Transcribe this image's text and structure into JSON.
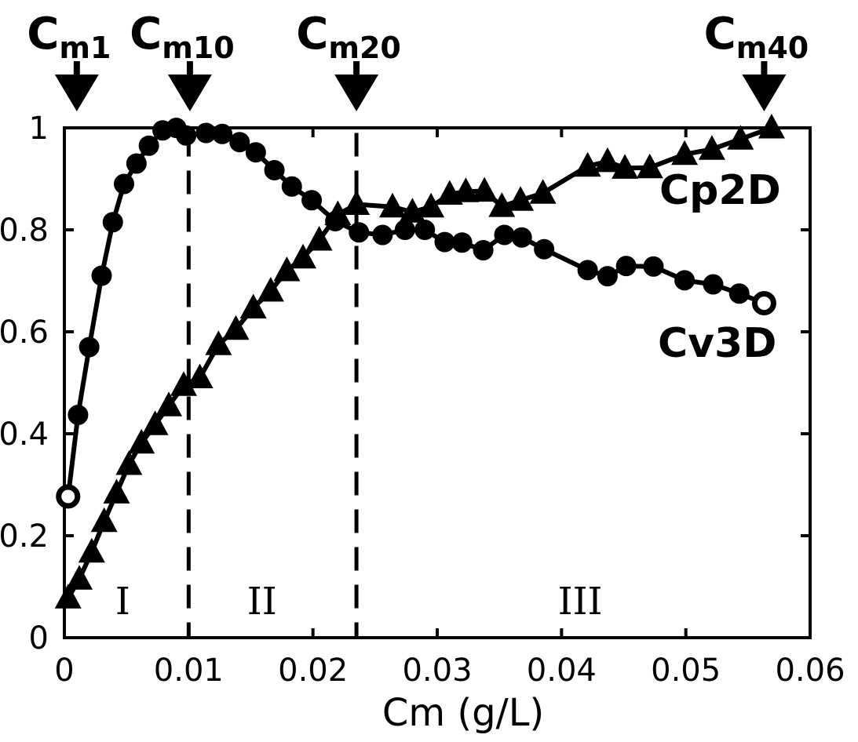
{
  "chart_data": {
    "type": "line",
    "xlabel": "Cm (g/L)",
    "ylabel": "",
    "xlim": [
      0,
      0.06
    ],
    "ylim": [
      0,
      1
    ],
    "x_ticks": [
      "0",
      "0.01",
      "0.02",
      "0.03",
      "0.04",
      "0.05",
      "0.06"
    ],
    "y_ticks": [
      "0",
      "0.2",
      "0.4",
      "0.6",
      "0.8",
      "1"
    ],
    "grid": false,
    "series": [
      {
        "name": "Cv3D",
        "marker": "circle",
        "x": [
          0.0003,
          0.0011,
          0.002,
          0.003,
          0.0039,
          0.0048,
          0.0058,
          0.0068,
          0.0079,
          0.009,
          0.0098,
          0.0114,
          0.0127,
          0.0141,
          0.0154,
          0.0169,
          0.0183,
          0.0199,
          0.0218,
          0.0237,
          0.0256,
          0.0274,
          0.029,
          0.0306,
          0.032,
          0.0337,
          0.0354,
          0.0368,
          0.0386,
          0.0421,
          0.0437,
          0.0452,
          0.0474,
          0.0499,
          0.0522,
          0.0543,
          0.0563
        ],
        "y": [
          0.277,
          0.437,
          0.57,
          0.71,
          0.815,
          0.89,
          0.93,
          0.965,
          0.995,
          1.0,
          0.985,
          0.99,
          0.988,
          0.972,
          0.952,
          0.917,
          0.885,
          0.858,
          0.817,
          0.795,
          0.79,
          0.8,
          0.8,
          0.776,
          0.775,
          0.76,
          0.79,
          0.785,
          0.762,
          0.721,
          0.709,
          0.729,
          0.728,
          0.701,
          0.693,
          0.675,
          0.656
        ]
      },
      {
        "name": "Cp2D",
        "marker": "triangle",
        "x": [
          0.0003,
          0.0012,
          0.0022,
          0.0032,
          0.0042,
          0.0052,
          0.0062,
          0.0073,
          0.0084,
          0.0096,
          0.0109,
          0.0124,
          0.0138,
          0.0152,
          0.0166,
          0.0179,
          0.0192,
          0.0205,
          0.022,
          0.0235,
          0.0264,
          0.028,
          0.0295,
          0.031,
          0.0323,
          0.0338,
          0.0352,
          0.0367,
          0.0385,
          0.0421,
          0.0437,
          0.0451,
          0.0471,
          0.0499,
          0.0521,
          0.0544,
          0.0569
        ],
        "y": [
          0.078,
          0.115,
          0.168,
          0.228,
          0.284,
          0.34,
          0.382,
          0.418,
          0.455,
          0.495,
          0.51,
          0.575,
          0.605,
          0.647,
          0.68,
          0.72,
          0.745,
          0.78,
          0.83,
          0.85,
          0.845,
          0.835,
          0.845,
          0.87,
          0.875,
          0.876,
          0.846,
          0.858,
          0.872,
          0.925,
          0.934,
          0.921,
          0.922,
          0.948,
          0.958,
          0.978,
          1.0
        ]
      }
    ],
    "dividers_x": [
      0.01,
      0.0235
    ],
    "regions": [
      {
        "label": "I",
        "x": 0.0047
      },
      {
        "label": "II",
        "x": 0.0159
      },
      {
        "label": "III",
        "x": 0.0415
      }
    ],
    "markers": [
      {
        "main": "C",
        "sub": "m1",
        "x": 0.001
      },
      {
        "main": "C",
        "sub": "m10",
        "x": 0.0101
      },
      {
        "main": "C",
        "sub": "m20",
        "x": 0.0235
      },
      {
        "main": "C",
        "sub": "m40",
        "x": 0.0563
      }
    ]
  }
}
